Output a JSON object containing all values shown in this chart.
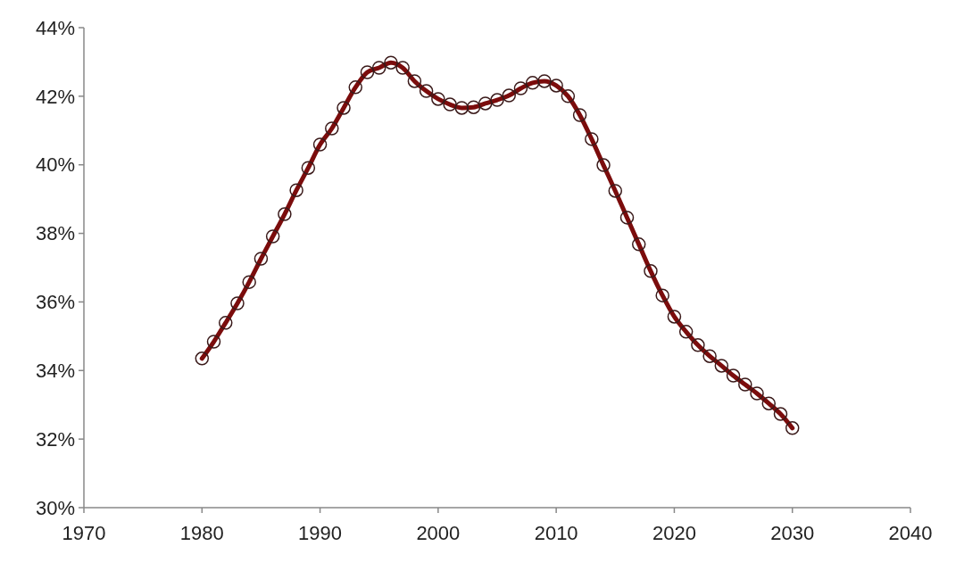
{
  "chart_data": {
    "type": "line",
    "x": [
      1980,
      1981,
      1982,
      1983,
      1984,
      1985,
      1986,
      1987,
      1988,
      1989,
      1990,
      1991,
      1992,
      1993,
      1994,
      1995,
      1996,
      1997,
      1998,
      1999,
      2000,
      2001,
      2002,
      2003,
      2004,
      2005,
      2006,
      2007,
      2008,
      2009,
      2010,
      2011,
      2012,
      2013,
      2014,
      2015,
      2016,
      2017,
      2018,
      2019,
      2020,
      2021,
      2022,
      2023,
      2024,
      2025,
      2026,
      2027,
      2028,
      2029,
      2030
    ],
    "series": [
      {
        "color": "#7b0c0c",
        "values": [
          34.35,
          34.84,
          35.39,
          35.96,
          36.58,
          37.26,
          37.91,
          38.56,
          39.26,
          39.91,
          40.59,
          41.06,
          41.66,
          42.26,
          42.7,
          42.83,
          42.98,
          42.83,
          42.44,
          42.15,
          41.92,
          41.76,
          41.66,
          41.68,
          41.79,
          41.89,
          42.02,
          42.23,
          42.39,
          42.44,
          42.31,
          42.0,
          41.45,
          40.75,
          39.99,
          39.24,
          38.46,
          37.68,
          36.9,
          36.19,
          35.57,
          35.13,
          34.74,
          34.42,
          34.14,
          33.85,
          33.59,
          33.33,
          33.04,
          32.73,
          32.32
        ]
      }
    ],
    "xlim": [
      1970,
      2040
    ],
    "xticks": [
      1970,
      1980,
      1990,
      2000,
      2010,
      2020,
      2030,
      2040
    ],
    "ylim": [
      30,
      44
    ],
    "yticks": [
      {
        "value": 30,
        "label": "30%"
      },
      {
        "value": 32,
        "label": "32%"
      },
      {
        "value": 34,
        "label": "34%"
      },
      {
        "value": 36,
        "label": "36%"
      },
      {
        "value": 38,
        "label": "38%"
      },
      {
        "value": 40,
        "label": "40%"
      },
      {
        "value": 42,
        "label": "42%"
      },
      {
        "value": 44,
        "label": "44%"
      }
    ],
    "marker": "circle",
    "line_style": "solid"
  }
}
